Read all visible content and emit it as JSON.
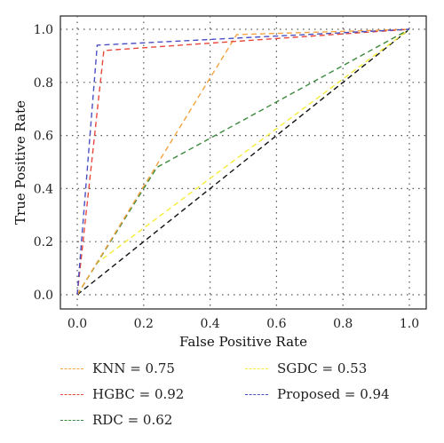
{
  "chart_data": {
    "type": "line",
    "title": "",
    "xlabel": "False Positive Rate",
    "ylabel": "True Positive Rate",
    "xlim": [
      0,
      1
    ],
    "ylim": [
      0,
      1
    ],
    "xticks": [
      "0.0",
      "0.2",
      "0.4",
      "0.6",
      "0.8",
      "1.0"
    ],
    "yticks": [
      "0.0",
      "0.2",
      "0.4",
      "0.6",
      "0.8",
      "1.0"
    ],
    "grid": true,
    "legend_position": "bottom",
    "series": [
      {
        "name": "KNN = 0.75",
        "color": "#f4a340",
        "x": [
          0,
          0.48,
          1
        ],
        "y": [
          0,
          0.98,
          1
        ]
      },
      {
        "name": "HGBC = 0.92",
        "color": "#e8483c",
        "x": [
          0,
          0.08,
          1
        ],
        "y": [
          0,
          0.92,
          1
        ]
      },
      {
        "name": "RDC = 0.62",
        "color": "#3c8a3c",
        "x": [
          0,
          0.24,
          1
        ],
        "y": [
          0,
          0.48,
          1
        ]
      },
      {
        "name": "SGDC = 0.53",
        "color": "#f5ec3a",
        "x": [
          0,
          0.06,
          1
        ],
        "y": [
          0,
          0.12,
          1
        ]
      },
      {
        "name": "Proposed = 0.94",
        "color": "#4b4fc4",
        "x": [
          0,
          0.06,
          1
        ],
        "y": [
          0,
          0.94,
          1
        ]
      },
      {
        "name": "",
        "color": "#111111",
        "x": [
          0,
          1
        ],
        "y": [
          0,
          1
        ]
      }
    ]
  },
  "legend": {
    "items": [
      {
        "label": "KNN = 0.75",
        "color": "#f4a340"
      },
      {
        "label": "HGBC = 0.92",
        "color": "#e8483c"
      },
      {
        "label": "RDC = 0.62",
        "color": "#3c8a3c"
      },
      {
        "label": "SGDC = 0.53",
        "color": "#f5ec3a"
      },
      {
        "label": "Proposed = 0.94",
        "color": "#4b4fc4"
      }
    ]
  }
}
